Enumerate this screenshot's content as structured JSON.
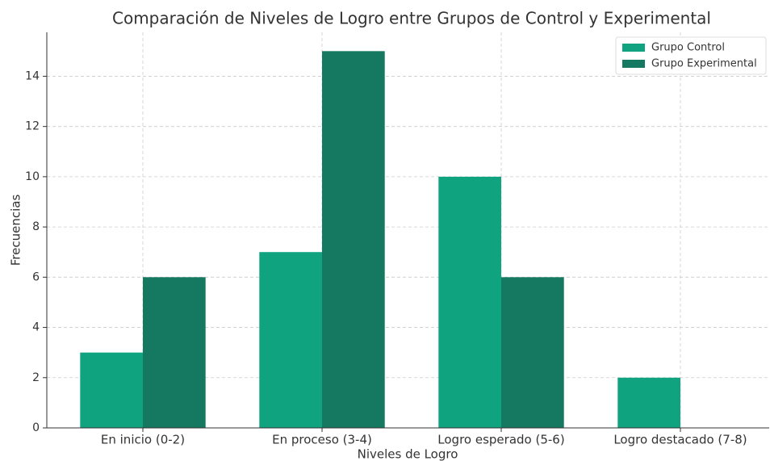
{
  "chart_data": {
    "type": "bar",
    "title": "Comparación de Niveles de Logro entre Grupos de Control y Experimental",
    "x_label": "Niveles de Logro",
    "y_label": "Frecuencias",
    "categories": [
      "En inicio (0-2)",
      "En proceso (3-4)",
      "Logro esperado (5-6)",
      "Logro destacado (7-8)"
    ],
    "series": [
      {
        "name": "Grupo Control",
        "color": "#10a37f",
        "values": [
          3,
          7,
          10,
          2
        ]
      },
      {
        "name": "Grupo Experimental",
        "color": "#147960",
        "values": [
          6,
          15,
          6,
          0
        ]
      }
    ],
    "ylim": [
      0,
      15.75
    ],
    "yticks": [
      0,
      2,
      4,
      6,
      8,
      10,
      12,
      14
    ],
    "grid": true,
    "legend": "upper right"
  }
}
